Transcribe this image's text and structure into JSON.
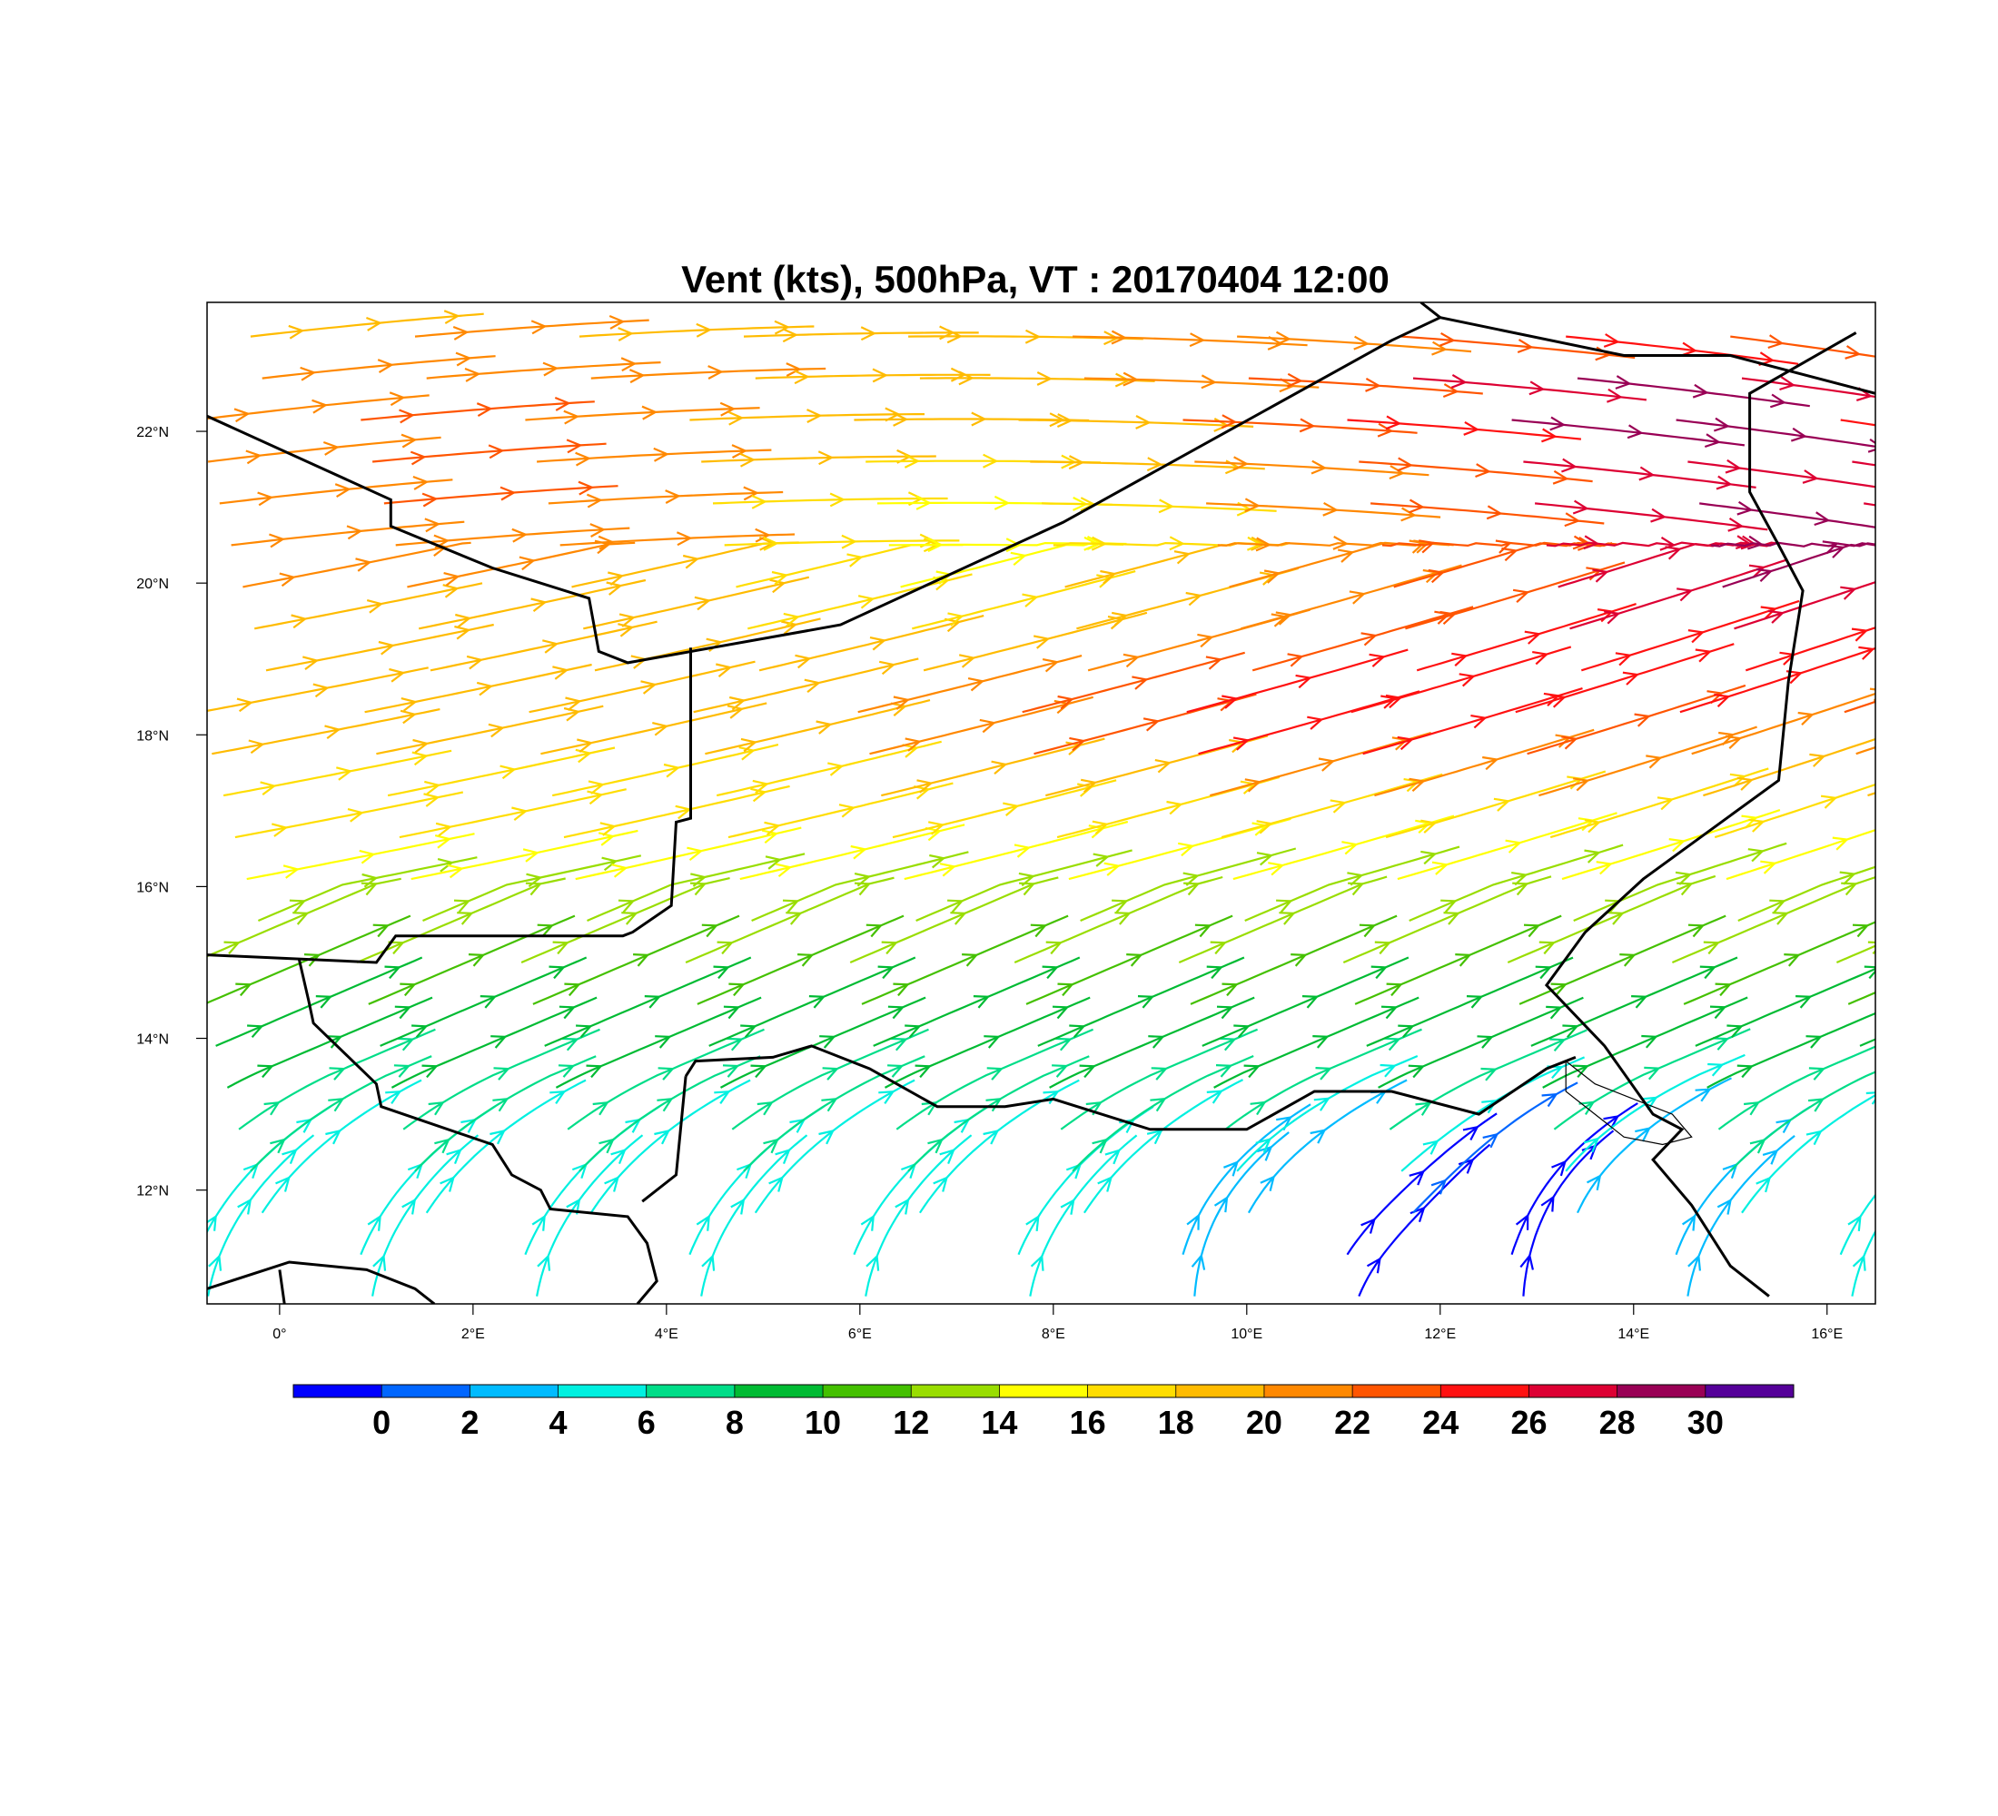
{
  "title": "Vent (kts), 500hPa, VT : 20170404  12:00",
  "map": {
    "lon_range": [
      -0.75,
      16.5
    ],
    "lat_range": [
      10.5,
      23.7
    ],
    "lon_ticks": [
      {
        "value": 0,
        "label": "0°"
      },
      {
        "value": 2,
        "label": "2°E"
      },
      {
        "value": 4,
        "label": "4°E"
      },
      {
        "value": 6,
        "label": "6°E"
      },
      {
        "value": 8,
        "label": "8°E"
      },
      {
        "value": 10,
        "label": "10°E"
      },
      {
        "value": 12,
        "label": "12°E"
      },
      {
        "value": 14,
        "label": "14°E"
      },
      {
        "value": 16,
        "label": "16°E"
      }
    ],
    "lat_ticks": [
      {
        "value": 22,
        "label": "22°N"
      },
      {
        "value": 20,
        "label": "20°N"
      },
      {
        "value": 18,
        "label": "18°N"
      },
      {
        "value": 16,
        "label": "16°N"
      },
      {
        "value": 14,
        "label": "14°N"
      },
      {
        "value": 12,
        "label": "12°N"
      }
    ]
  },
  "colorbar": {
    "colors": [
      "#0000ff",
      "#0066ff",
      "#00bbff",
      "#00f0e0",
      "#00dd88",
      "#00bb33",
      "#44c000",
      "#99dd00",
      "#ffff00",
      "#ffdd00",
      "#ffbb00",
      "#ff8800",
      "#ff5500",
      "#ff1111",
      "#dd0033",
      "#990055",
      "#550099"
    ],
    "labels": [
      "0",
      "2",
      "4",
      "6",
      "8",
      "10",
      "12",
      "14",
      "16",
      "18",
      "20",
      "22",
      "24",
      "26",
      "28",
      "30"
    ]
  },
  "chart_data": {
    "type": "streamline",
    "variable": "Vent (kts), 500hPa",
    "valid_time": "20170404  12:00",
    "units": "kts",
    "color_levels": [
      0,
      2,
      4,
      6,
      8,
      10,
      12,
      14,
      16,
      18,
      20,
      22,
      24,
      26,
      28,
      30
    ],
    "wind_zones": [
      {
        "region": "north of 20°N, west of 6°E",
        "speed_kts": 22,
        "direction": "westerly"
      },
      {
        "region": "20-22°N, 8-12°E",
        "speed_kts": 26,
        "direction": "westerly"
      },
      {
        "region": "18-22°N, 12-16.5°E",
        "speed_kts": 31,
        "direction": "west-southwesterly"
      },
      {
        "region": "22-23.5°N, 7-16°E",
        "speed_kts": 31,
        "direction": "westerly"
      },
      {
        "region": "16-19°N, 0-8°E",
        "speed_kts": 20,
        "direction": "west-southwesterly"
      },
      {
        "region": "14-16°N, 0-10°E",
        "speed_kts": 16,
        "direction": "southwesterly"
      },
      {
        "region": "12-14°N, 0-10°E",
        "speed_kts": 12,
        "direction": "southerly to southwesterly"
      },
      {
        "region": "10.5-12.5°N, 10-15°E",
        "speed_kts": 5,
        "direction": "variable"
      }
    ]
  }
}
